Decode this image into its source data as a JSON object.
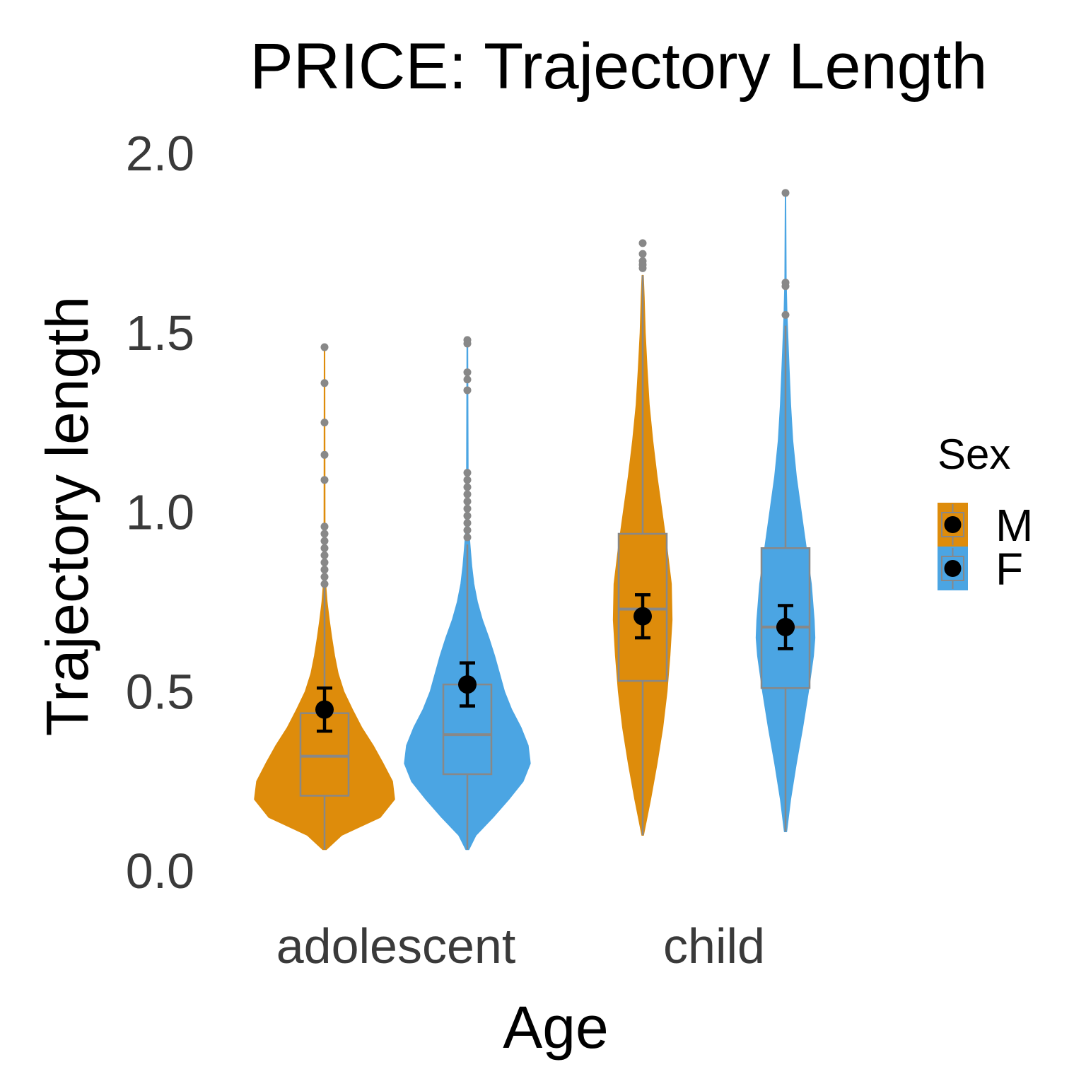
{
  "chart_data": {
    "type": "violin",
    "title": "PRICE: Trajectory Length",
    "xlabel": "Age",
    "ylabel": "Trajectory length",
    "categories": [
      "adolescent",
      "child"
    ],
    "ylim": [
      0,
      2
    ],
    "yticks": [
      "0.0",
      "0.5",
      "1.0",
      "1.5",
      "2.0"
    ],
    "grid": false,
    "legend": {
      "title": "Sex",
      "placement": "right",
      "entries": [
        {
          "label": "M",
          "color": "#DE8C0B"
        },
        {
          "label": "F",
          "color": "#4BA5E3"
        }
      ]
    },
    "series": [
      {
        "name": "M",
        "color": "#DE8C0B",
        "groups": [
          {
            "category": "adolescent",
            "violin": [
              [
                0.06,
                0.025
              ],
              [
                0.1,
                0.24
              ],
              [
                0.15,
                0.78
              ],
              [
                0.2,
                0.98
              ],
              [
                0.25,
                0.95
              ],
              [
                0.3,
                0.82
              ],
              [
                0.35,
                0.68
              ],
              [
                0.4,
                0.52
              ],
              [
                0.45,
                0.39
              ],
              [
                0.5,
                0.27
              ],
              [
                0.55,
                0.19
              ],
              [
                0.6,
                0.14
              ],
              [
                0.65,
                0.1
              ],
              [
                0.7,
                0.065
              ],
              [
                0.75,
                0.035
              ],
              [
                0.8,
                0.015
              ],
              [
                0.85,
                0.009
              ],
              [
                0.9,
                0.006
              ],
              [
                1.45,
                0.003
              ]
            ],
            "box": {
              "q1": 0.21,
              "median": 0.32,
              "q3": 0.44,
              "lower": 0.06,
              "upper": 0.79
            },
            "outliers": [
              0.8,
              0.82,
              0.84,
              0.86,
              0.88,
              0.9,
              0.92,
              0.94,
              0.96,
              1.09,
              1.16,
              1.25,
              1.36,
              1.46
            ],
            "mean": 0.45,
            "ci": [
              0.39,
              0.51
            ]
          },
          {
            "category": "child",
            "violin": [
              [
                0.1,
                0.01
              ],
              [
                0.2,
                0.11
              ],
              [
                0.3,
                0.2
              ],
              [
                0.4,
                0.28
              ],
              [
                0.5,
                0.34
              ],
              [
                0.6,
                0.38
              ],
              [
                0.7,
                0.41
              ],
              [
                0.8,
                0.4
              ],
              [
                0.9,
                0.34
              ],
              [
                1.0,
                0.27
              ],
              [
                1.1,
                0.2
              ],
              [
                1.2,
                0.14
              ],
              [
                1.3,
                0.09
              ],
              [
                1.4,
                0.06
              ],
              [
                1.5,
                0.035
              ],
              [
                1.6,
                0.02
              ],
              [
                1.66,
                0.008
              ]
            ],
            "box": {
              "q1": 0.53,
              "median": 0.73,
              "q3": 0.94,
              "lower": 0.1,
              "upper": 1.66
            },
            "outliers": [
              1.68,
              1.69,
              1.7,
              1.72,
              1.75
            ],
            "mean": 0.71,
            "ci": [
              0.65,
              0.77
            ]
          }
        ]
      },
      {
        "name": "F",
        "color": "#4BA5E3",
        "groups": [
          {
            "category": "adolescent",
            "violin": [
              [
                0.06,
                0.02
              ],
              [
                0.1,
                0.12
              ],
              [
                0.15,
                0.36
              ],
              [
                0.2,
                0.58
              ],
              [
                0.25,
                0.78
              ],
              [
                0.3,
                0.88
              ],
              [
                0.35,
                0.85
              ],
              [
                0.4,
                0.75
              ],
              [
                0.45,
                0.62
              ],
              [
                0.5,
                0.52
              ],
              [
                0.55,
                0.45
              ],
              [
                0.6,
                0.38
              ],
              [
                0.65,
                0.3
              ],
              [
                0.7,
                0.21
              ],
              [
                0.75,
                0.14
              ],
              [
                0.8,
                0.09
              ],
              [
                0.85,
                0.06
              ],
              [
                0.9,
                0.04
              ],
              [
                0.95,
                0.02
              ],
              [
                1.1,
                0.01
              ],
              [
                1.48,
                0.004
              ]
            ],
            "box": {
              "q1": 0.27,
              "median": 0.38,
              "q3": 0.52,
              "lower": 0.06,
              "upper": 0.91
            },
            "outliers": [
              0.93,
              0.95,
              0.97,
              0.99,
              1.01,
              1.03,
              1.05,
              1.07,
              1.09,
              1.11,
              1.34,
              1.37,
              1.39,
              1.47,
              1.48
            ],
            "mean": 0.52,
            "ci": [
              0.46,
              0.58
            ]
          },
          {
            "category": "child",
            "violin": [
              [
                0.11,
                0.015
              ],
              [
                0.2,
                0.07
              ],
              [
                0.3,
                0.15
              ],
              [
                0.4,
                0.24
              ],
              [
                0.5,
                0.32
              ],
              [
                0.6,
                0.39
              ],
              [
                0.65,
                0.41
              ],
              [
                0.7,
                0.4
              ],
              [
                0.8,
                0.36
              ],
              [
                0.9,
                0.29
              ],
              [
                1.0,
                0.22
              ],
              [
                1.1,
                0.15
              ],
              [
                1.2,
                0.1
              ],
              [
                1.3,
                0.07
              ],
              [
                1.4,
                0.05
              ],
              [
                1.5,
                0.03
              ],
              [
                1.55,
                0.02
              ],
              [
                1.65,
                0.008
              ],
              [
                1.89,
                0.002
              ]
            ],
            "box": {
              "q1": 0.51,
              "median": 0.68,
              "q3": 0.9,
              "lower": 0.11,
              "upper": 1.52
            },
            "outliers": [
              1.55,
              1.63,
              1.64,
              1.89
            ],
            "mean": 0.68,
            "ci": [
              0.62,
              0.74
            ]
          }
        ]
      }
    ]
  }
}
